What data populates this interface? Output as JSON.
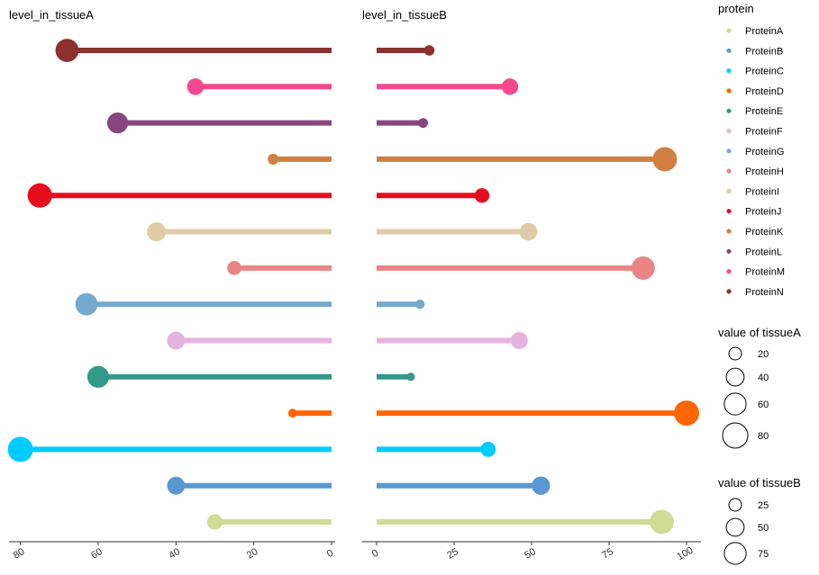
{
  "chart_data": {
    "type": "lollipop",
    "categories": [
      "ProteinA",
      "ProteinB",
      "ProteinC",
      "ProteinD",
      "ProteinE",
      "ProteinF",
      "ProteinG",
      "ProteinH",
      "ProteinI",
      "ProteinJ",
      "ProteinK",
      "ProteinL",
      "ProteinM",
      "ProteinN"
    ],
    "colors": [
      "#D0DB95",
      "#5899D3",
      "#00CCFF",
      "#FF6600",
      "#339988",
      "#E5B3DD",
      "#75AACE",
      "#EA8585",
      "#E0CBA8",
      "#E60E1C",
      "#D07F42",
      "#87467E",
      "#F44A8D",
      "#8B3230"
    ],
    "panels": [
      {
        "title": "level_in_tissueA",
        "values": [
          30,
          40,
          80,
          10,
          60,
          40,
          63,
          25,
          45,
          75,
          15,
          55,
          35,
          68
        ],
        "xlim": [
          0,
          82
        ],
        "reversed": true,
        "ticks": [
          80,
          60,
          40,
          20,
          0
        ]
      },
      {
        "title": "level_in_tissueB",
        "values": [
          92,
          53,
          36,
          100,
          11,
          46,
          14,
          86,
          49,
          34,
          93,
          15,
          43,
          17
        ],
        "xlim": [
          0,
          100
        ],
        "reversed": false,
        "ticks": [
          0,
          25,
          50,
          75,
          100
        ]
      }
    ],
    "legend": {
      "color_title": "protein",
      "color_entries": [
        "ProteinA",
        "ProteinB",
        "ProteinC",
        "ProteinD",
        "ProteinE",
        "ProteinF",
        "ProteinG",
        "ProteinH",
        "ProteinI",
        "ProteinJ",
        "ProteinK",
        "ProteinL",
        "ProteinM",
        "ProteinN"
      ],
      "size_a_title": "value of tissueA",
      "size_a_entries": [
        20,
        40,
        60,
        80
      ],
      "size_b_title": "value of tissueB",
      "size_b_entries": [
        25,
        50,
        75
      ],
      "placement": "right"
    }
  }
}
